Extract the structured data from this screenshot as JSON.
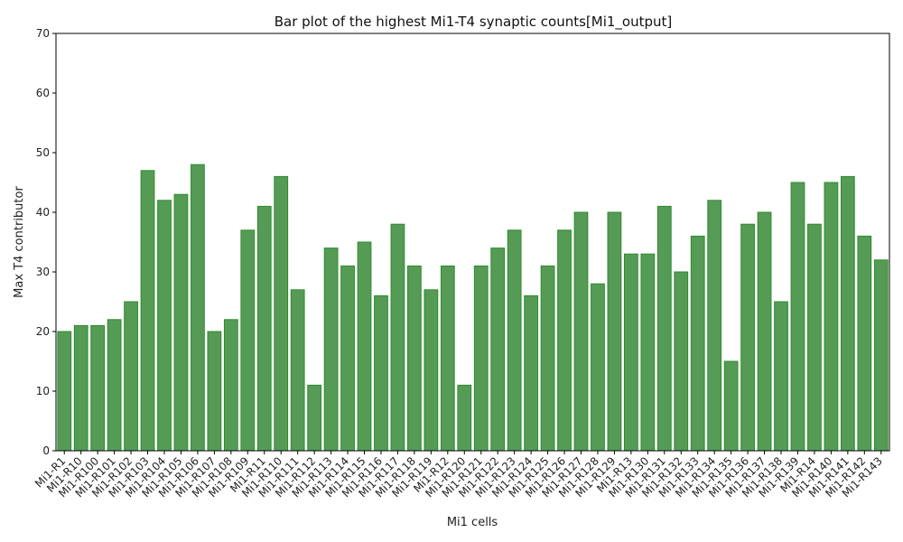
{
  "chart_data": {
    "type": "bar",
    "title": "Bar plot of the highest Mi1-T4 synaptic counts[Mi1_output]",
    "xlabel": "Mi1 cells",
    "ylabel": "Max T4 contributor",
    "ylim": [
      0,
      70
    ],
    "yticks": [
      0,
      10,
      20,
      30,
      40,
      50,
      60,
      70
    ],
    "grid": false,
    "bar_color": "#559b55",
    "bar_edge_color": "#2e8b2e",
    "categories": [
      "Mi1-R1",
      "Mi1-R10",
      "Mi1-R100",
      "Mi1-R101",
      "Mi1-R102",
      "Mi1-R103",
      "Mi1-R104",
      "Mi1-R105",
      "Mi1-R106",
      "Mi1-R107",
      "Mi1-R108",
      "Mi1-R109",
      "Mi1-R11",
      "Mi1-R110",
      "Mi1-R111",
      "Mi1-R112",
      "Mi1-R113",
      "Mi1-R114",
      "Mi1-R115",
      "Mi1-R116",
      "Mi1-R117",
      "Mi1-R118",
      "Mi1-R119",
      "Mi1-R12",
      "Mi1-R120",
      "Mi1-R121",
      "Mi1-R122",
      "Mi1-R123",
      "Mi1-R124",
      "Mi1-R125",
      "Mi1-R126",
      "Mi1-R127",
      "Mi1-R128",
      "Mi1-R129",
      "Mi1-R13",
      "Mi1-R130",
      "Mi1-R131",
      "Mi1-R132",
      "Mi1-R133",
      "Mi1-R134",
      "Mi1-R135",
      "Mi1-R136",
      "Mi1-R137",
      "Mi1-R138",
      "Mi1-R139",
      "Mi1-R14",
      "Mi1-R140",
      "Mi1-R141",
      "Mi1-R142",
      "Mi1-R143"
    ],
    "values": [
      20,
      21,
      21,
      22,
      25,
      47,
      42,
      43,
      48,
      20,
      22,
      37,
      41,
      46,
      27,
      11,
      34,
      31,
      35,
      26,
      38,
      31,
      27,
      31,
      11,
      31,
      34,
      37,
      26,
      31,
      37,
      40,
      28,
      40,
      33,
      33,
      41,
      30,
      36,
      42,
      15,
      38,
      40,
      25,
      45,
      38,
      45,
      46,
      36,
      32
    ]
  }
}
